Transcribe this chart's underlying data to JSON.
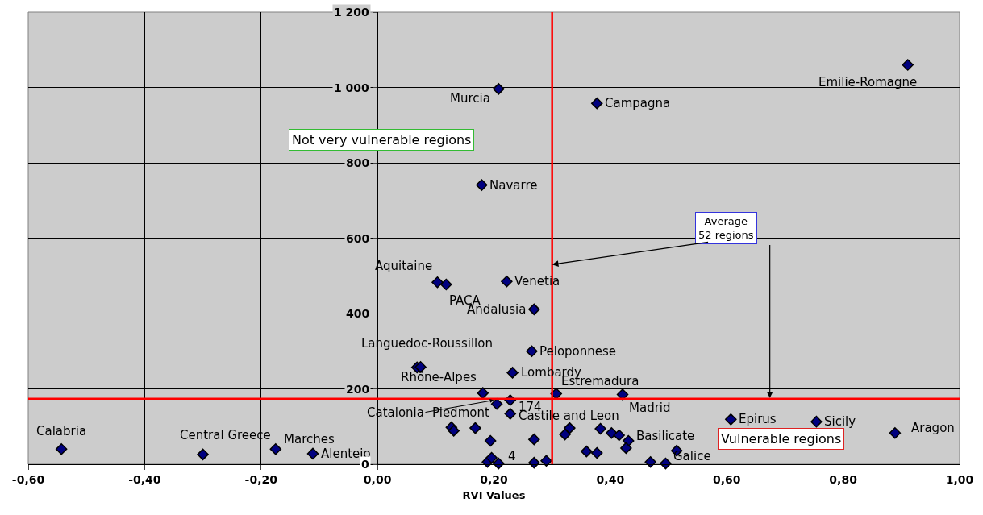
{
  "chart_data": {
    "type": "scatter",
    "xlabel": "RVI Values",
    "marker": "diamond",
    "grid": true,
    "xlim": [
      -0.6,
      1.0
    ],
    "ylim": [
      0,
      1200
    ],
    "xticks": [
      {
        "value": -0.6,
        "label": "-0,60"
      },
      {
        "value": -0.4,
        "label": "-0,40"
      },
      {
        "value": -0.2,
        "label": "-0,20"
      },
      {
        "value": 0,
        "label": "0,00"
      },
      {
        "value": 0.2,
        "label": "0,20"
      },
      {
        "value": 0.4,
        "label": "0,40"
      },
      {
        "value": 0.6,
        "label": "0,60"
      },
      {
        "value": 0.8,
        "label": "0,80"
      },
      {
        "value": 1.0,
        "label": "1,00"
      }
    ],
    "yticks": [
      0,
      200,
      400,
      600,
      800,
      {
        "value": 1000,
        "label": "1 000"
      },
      {
        "value": 1200,
        "label": "1 200"
      }
    ],
    "series": [
      {
        "color": "#000080",
        "x": [
          0.103,
          0.118,
          0.222,
          0.269,
          0.068,
          0.074,
          0.265,
          0.232,
          0.181,
          0.2,
          0.205,
          0.228,
          0.307,
          0.421,
          0.228,
          0.127,
          0.131,
          0.168,
          0.194,
          0.269,
          0.322,
          0.33,
          0.383,
          0.402,
          0.415,
          0.431,
          0.427,
          0.359,
          0.377,
          0.469,
          0.189,
          0.196,
          0.208,
          0.269,
          0.29,
          0.514,
          0.495,
          0.607,
          0.754,
          0.889,
          -0.543,
          -0.3,
          -0.175,
          -0.111,
          0.208,
          0.179,
          0.377,
          0.911
        ],
        "values": [
          483,
          477,
          485,
          411,
          257,
          258,
          300,
          243,
          189,
          null,
          160,
          170,
          187,
          185,
          134,
          98,
          89,
          96,
          62,
          66,
          79,
          96,
          94,
          83,
          77,
          62,
          43,
          34,
          30,
          6,
          6,
          17,
          2,
          4,
          9,
          36,
          2,
          119,
          113,
          83,
          40,
          26,
          40,
          28,
          996,
          741,
          958,
          1060
        ]
      }
    ],
    "ref_lines": [
      {
        "axis": "x",
        "value": 0.3,
        "color": "#ff0000"
      },
      {
        "axis": "y",
        "value": 174,
        "color": "#ff0000"
      }
    ],
    "annotations": [
      "Not very vulnerable regions",
      "Vulnerable regions",
      {
        "text": "Average\n52 regions",
        "x": 0.3,
        "y": 530
      },
      {
        "text": "Emilie-Romagne",
        "x": 0.911,
        "y": 1060
      },
      {
        "text": "Murcia",
        "x": 0.208,
        "y": 996
      },
      {
        "text": "Campagna",
        "x": 0.377,
        "y": 958
      },
      {
        "text": "Navarre",
        "x": 0.179,
        "y": 741
      },
      {
        "text": "Aquitaine",
        "x": 0.103,
        "y": 483
      },
      {
        "text": "PACA",
        "x": 0.118,
        "y": 477
      },
      {
        "text": "Venetia",
        "x": 0.222,
        "y": 485
      },
      {
        "text": "Andalusia",
        "x": 0.269,
        "y": 411
      },
      {
        "text": "Languedoc-Roussillon",
        "x": 0.068,
        "y": 257
      },
      {
        "text": "Peloponnese",
        "x": 0.265,
        "y": 300
      },
      {
        "text": "Lombardy",
        "x": 0.232,
        "y": 243
      },
      {
        "text": "Rhône-Alpes",
        "x": 0.181,
        "y": 189
      },
      {
        "text": "Estremadura",
        "x": 0.307,
        "y": 187
      },
      {
        "text": "174",
        "x": 0.228,
        "y": 170
      },
      {
        "text": "Madrid",
        "x": 0.421,
        "y": 185
      },
      {
        "text": "Catalonia",
        "x": 0.2,
        "y": 170
      },
      {
        "text": "Piedmont",
        "x": 0.127,
        "y": 98
      },
      {
        "text": "Castile and Leon",
        "x": 0.228,
        "y": 134
      },
      {
        "text": "Basilicate",
        "x": 0.431,
        "y": 62
      },
      {
        "text": "Galice",
        "x": 0.495,
        "y": 2
      },
      {
        "text": "4",
        "x": 0.208,
        "y": 2
      },
      {
        "text": "Epirus",
        "x": 0.607,
        "y": 119
      },
      {
        "text": "Sicily",
        "x": 0.754,
        "y": 113
      },
      {
        "text": "Aragon",
        "x": 0.889,
        "y": 83
      },
      {
        "text": "Calabria",
        "x": -0.543,
        "y": 40
      },
      {
        "text": "Central Greece",
        "x": -0.3,
        "y": 26
      },
      {
        "text": "Marches",
        "x": -0.175,
        "y": 40
      },
      {
        "text": "Alentejo",
        "x": -0.111,
        "y": 28
      }
    ]
  }
}
